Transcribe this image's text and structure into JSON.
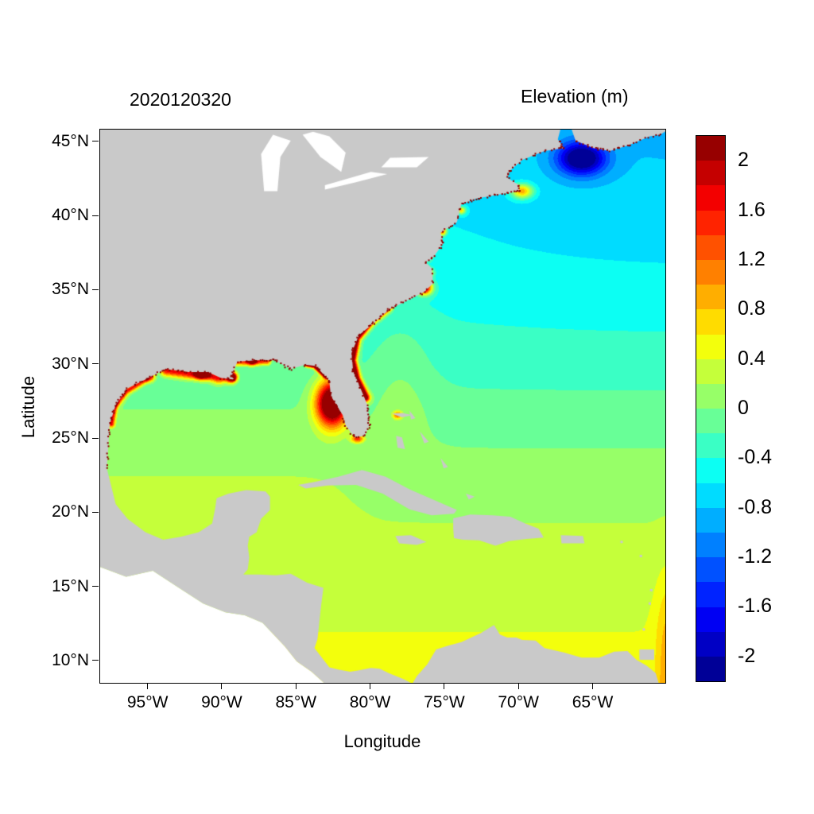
{
  "header": {
    "left_title": "2020120320",
    "right_title": "Elevation (m)"
  },
  "axes": {
    "xlabel": "Longitude",
    "ylabel": "Latitude",
    "x_ticks": [
      {
        "label": "95°W",
        "value": -95
      },
      {
        "label": "90°W",
        "value": -90
      },
      {
        "label": "85°W",
        "value": -85
      },
      {
        "label": "80°W",
        "value": -80
      },
      {
        "label": "75°W",
        "value": -75
      },
      {
        "label": "70°W",
        "value": -70
      },
      {
        "label": "65°W",
        "value": -65
      }
    ],
    "y_ticks": [
      {
        "label": "10°N",
        "value": 10
      },
      {
        "label": "15°N",
        "value": 15
      },
      {
        "label": "20°N",
        "value": 20
      },
      {
        "label": "25°N",
        "value": 25
      },
      {
        "label": "30°N",
        "value": 30
      },
      {
        "label": "35°N",
        "value": 35
      },
      {
        "label": "40°N",
        "value": 40
      },
      {
        "label": "45°N",
        "value": 45
      }
    ]
  },
  "colorbar": {
    "title": "Elevation (m)",
    "unit": "m",
    "vmin": -2.2,
    "vmax": 2.2,
    "band_step": 0.2,
    "n_bands": 22,
    "palette": "jet",
    "ticks": [
      {
        "label": "2",
        "value": 2
      },
      {
        "label": "1.6",
        "value": 1.6
      },
      {
        "label": "1.2",
        "value": 1.2
      },
      {
        "label": "0.8",
        "value": 0.8
      },
      {
        "label": "0.4",
        "value": 0.4
      },
      {
        "label": "0",
        "value": 0
      },
      {
        "label": "-0.4",
        "value": -0.4
      },
      {
        "label": "-0.8",
        "value": -0.8
      },
      {
        "label": "-1.2",
        "value": -1.2
      },
      {
        "label": "-1.6",
        "value": -1.6
      },
      {
        "label": "-2",
        "value": -2
      }
    ]
  },
  "chart_data": {
    "type": "heatmap",
    "subtype": "filled-contour-geographic-map",
    "title": "2020120320",
    "colorbar_title": "Elevation (m)",
    "xlabel": "Longitude",
    "ylabel": "Latitude",
    "lon_range": [
      -98.25,
      -60.15
    ],
    "lat_range": [
      8.55,
      45.85
    ],
    "contour_interval_m": 0.2,
    "value_range_m": [
      -2.2,
      2.2
    ],
    "land_color": "#c9c9c9",
    "no_data_color": "#ffffff",
    "speckle_color": "#8b0000",
    "base_profile": [
      [
        8,
        0.45
      ],
      [
        12,
        0.4
      ],
      [
        16,
        0.3
      ],
      [
        20,
        0.18
      ],
      [
        24,
        0.02
      ],
      [
        27,
        -0.12
      ],
      [
        30,
        -0.28
      ],
      [
        34,
        -0.42
      ],
      [
        38,
        -0.52
      ],
      [
        42,
        -0.6
      ],
      [
        46,
        -0.65
      ]
    ],
    "regional_anomalies": {
      "gulf_of_mexico_offset": 0.12,
      "northeast_deepening": -0.2,
      "gulf_stream_warm_band": 0.25,
      "southeast_edge_strip": 0.55
    },
    "hotspots": [
      {
        "name": "west-florida-surge",
        "lon": -82.6,
        "lat": 27.4,
        "amp": 3.2,
        "rlon": 1.05,
        "rlat": 1.5
      },
      {
        "name": "florida-bay",
        "lon": -80.9,
        "lat": 25.0,
        "amp": 1.5,
        "rlon": 0.4,
        "rlat": 0.25
      },
      {
        "name": "mississippi-delta",
        "lon": -89.35,
        "lat": 29.15,
        "amp": 2.8,
        "rlon": 0.3,
        "rlat": 0.3
      },
      {
        "name": "atchafalaya",
        "lon": -91.4,
        "lat": 29.3,
        "amp": 2.2,
        "rlon": 0.45,
        "rlat": 0.3
      },
      {
        "name": "mobile-bay",
        "lon": -88.0,
        "lat": 30.3,
        "amp": 2.2,
        "rlon": 0.28,
        "rlat": 0.28
      },
      {
        "name": "galveston",
        "lon": -94.9,
        "lat": 29.2,
        "amp": 2.0,
        "rlon": 0.3,
        "rlat": 0.3
      },
      {
        "name": "corpus-christi",
        "lon": -97.3,
        "lat": 27.6,
        "amp": 2.0,
        "rlon": 0.22,
        "rlat": 0.45
      },
      {
        "name": "pamlico-sound",
        "lon": -76.4,
        "lat": 35.2,
        "amp": 2.8,
        "rlon": 0.5,
        "rlat": 0.45
      },
      {
        "name": "albemarle",
        "lon": -76.2,
        "lat": 36.2,
        "amp": 2.0,
        "rlon": 0.35,
        "rlat": 0.3
      },
      {
        "name": "chesapeake",
        "lon": -76.1,
        "lat": 37.8,
        "amp": 2.2,
        "rlon": 0.3,
        "rlat": 0.55
      },
      {
        "name": "delaware-bay",
        "lon": -75.2,
        "lat": 39.0,
        "amp": 1.8,
        "rlon": 0.3,
        "rlat": 0.3
      },
      {
        "name": "new-york-bight",
        "lon": -73.9,
        "lat": 40.4,
        "amp": 1.3,
        "rlon": 0.3,
        "rlat": 0.25
      },
      {
        "name": "cape-cod",
        "lon": -69.8,
        "lat": 41.7,
        "amp": 1.6,
        "rlon": 0.75,
        "rlat": 0.5
      },
      {
        "name": "gulf-of-maine-low",
        "lon": -65.8,
        "lat": 43.9,
        "amp": -1.75,
        "rlon": 1.6,
        "rlat": 1.1
      },
      {
        "name": "abaco",
        "lon": -78.2,
        "lat": 26.6,
        "amp": 1.2,
        "rlon": 0.3,
        "rlat": 0.25
      }
    ],
    "coastal_ribbons": [
      {
        "name": "southeast-seaboard",
        "amp": 3.0,
        "width": 0.3,
        "points": [
          [
            -80.4,
            27.8
          ],
          [
            -81.0,
            29.0
          ],
          [
            -81.3,
            30.3
          ],
          [
            -81.0,
            31.8
          ],
          [
            -80.0,
            33.0
          ],
          [
            -78.9,
            33.9
          ]
        ]
      },
      {
        "name": "florida-big-bend",
        "amp": 2.6,
        "width": 0.15,
        "points": [
          [
            -83.0,
            29.2
          ],
          [
            -83.8,
            29.9
          ],
          [
            -84.3,
            30.0
          ]
        ]
      },
      {
        "name": "louisiana-coast",
        "amp": 1.8,
        "width": 0.35,
        "points": [
          [
            -93.8,
            29.6
          ],
          [
            -92.3,
            29.4
          ],
          [
            -91.2,
            29.4
          ],
          [
            -90.3,
            29.1
          ],
          [
            -89.5,
            29.2
          ]
        ]
      },
      {
        "name": "texas-coast",
        "amp": 1.7,
        "width": 0.22,
        "points": [
          [
            -97.5,
            26.0
          ],
          [
            -97.3,
            27.2
          ],
          [
            -96.5,
            28.2
          ],
          [
            -95.2,
            29.0
          ]
        ]
      },
      {
        "name": "mississippi-alabama-coast",
        "amp": 1.7,
        "width": 0.25,
        "points": [
          [
            -89.3,
            30.2
          ],
          [
            -88.2,
            30.2
          ],
          [
            -87.0,
            30.25
          ]
        ]
      }
    ]
  }
}
